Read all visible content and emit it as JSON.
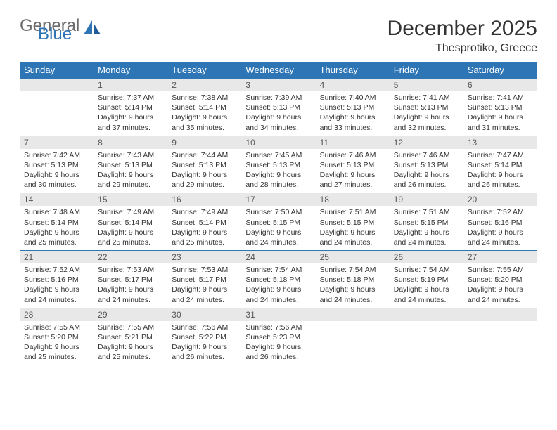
{
  "logo": {
    "word1": "General",
    "word2": "Blue"
  },
  "title": "December 2025",
  "location": "Thesprotiko, Greece",
  "colors": {
    "header_bg": "#2e75b6",
    "header_text": "#ffffff",
    "daybar_bg": "#e8e8e8",
    "rule": "#2e75b6",
    "body_text": "#333333",
    "logo_gray": "#6b6b6b",
    "logo_blue": "#2e75b6",
    "page_bg": "#ffffff"
  },
  "day_headers": [
    "Sunday",
    "Monday",
    "Tuesday",
    "Wednesday",
    "Thursday",
    "Friday",
    "Saturday"
  ],
  "weeks": [
    [
      {
        "n": "",
        "sr": "",
        "ss": "",
        "d1": "",
        "d2": ""
      },
      {
        "n": "1",
        "sr": "Sunrise: 7:37 AM",
        "ss": "Sunset: 5:14 PM",
        "d1": "Daylight: 9 hours",
        "d2": "and 37 minutes."
      },
      {
        "n": "2",
        "sr": "Sunrise: 7:38 AM",
        "ss": "Sunset: 5:14 PM",
        "d1": "Daylight: 9 hours",
        "d2": "and 35 minutes."
      },
      {
        "n": "3",
        "sr": "Sunrise: 7:39 AM",
        "ss": "Sunset: 5:13 PM",
        "d1": "Daylight: 9 hours",
        "d2": "and 34 minutes."
      },
      {
        "n": "4",
        "sr": "Sunrise: 7:40 AM",
        "ss": "Sunset: 5:13 PM",
        "d1": "Daylight: 9 hours",
        "d2": "and 33 minutes."
      },
      {
        "n": "5",
        "sr": "Sunrise: 7:41 AM",
        "ss": "Sunset: 5:13 PM",
        "d1": "Daylight: 9 hours",
        "d2": "and 32 minutes."
      },
      {
        "n": "6",
        "sr": "Sunrise: 7:41 AM",
        "ss": "Sunset: 5:13 PM",
        "d1": "Daylight: 9 hours",
        "d2": "and 31 minutes."
      }
    ],
    [
      {
        "n": "7",
        "sr": "Sunrise: 7:42 AM",
        "ss": "Sunset: 5:13 PM",
        "d1": "Daylight: 9 hours",
        "d2": "and 30 minutes."
      },
      {
        "n": "8",
        "sr": "Sunrise: 7:43 AM",
        "ss": "Sunset: 5:13 PM",
        "d1": "Daylight: 9 hours",
        "d2": "and 29 minutes."
      },
      {
        "n": "9",
        "sr": "Sunrise: 7:44 AM",
        "ss": "Sunset: 5:13 PM",
        "d1": "Daylight: 9 hours",
        "d2": "and 29 minutes."
      },
      {
        "n": "10",
        "sr": "Sunrise: 7:45 AM",
        "ss": "Sunset: 5:13 PM",
        "d1": "Daylight: 9 hours",
        "d2": "and 28 minutes."
      },
      {
        "n": "11",
        "sr": "Sunrise: 7:46 AM",
        "ss": "Sunset: 5:13 PM",
        "d1": "Daylight: 9 hours",
        "d2": "and 27 minutes."
      },
      {
        "n": "12",
        "sr": "Sunrise: 7:46 AM",
        "ss": "Sunset: 5:13 PM",
        "d1": "Daylight: 9 hours",
        "d2": "and 26 minutes."
      },
      {
        "n": "13",
        "sr": "Sunrise: 7:47 AM",
        "ss": "Sunset: 5:14 PM",
        "d1": "Daylight: 9 hours",
        "d2": "and 26 minutes."
      }
    ],
    [
      {
        "n": "14",
        "sr": "Sunrise: 7:48 AM",
        "ss": "Sunset: 5:14 PM",
        "d1": "Daylight: 9 hours",
        "d2": "and 25 minutes."
      },
      {
        "n": "15",
        "sr": "Sunrise: 7:49 AM",
        "ss": "Sunset: 5:14 PM",
        "d1": "Daylight: 9 hours",
        "d2": "and 25 minutes."
      },
      {
        "n": "16",
        "sr": "Sunrise: 7:49 AM",
        "ss": "Sunset: 5:14 PM",
        "d1": "Daylight: 9 hours",
        "d2": "and 25 minutes."
      },
      {
        "n": "17",
        "sr": "Sunrise: 7:50 AM",
        "ss": "Sunset: 5:15 PM",
        "d1": "Daylight: 9 hours",
        "d2": "and 24 minutes."
      },
      {
        "n": "18",
        "sr": "Sunrise: 7:51 AM",
        "ss": "Sunset: 5:15 PM",
        "d1": "Daylight: 9 hours",
        "d2": "and 24 minutes."
      },
      {
        "n": "19",
        "sr": "Sunrise: 7:51 AM",
        "ss": "Sunset: 5:15 PM",
        "d1": "Daylight: 9 hours",
        "d2": "and 24 minutes."
      },
      {
        "n": "20",
        "sr": "Sunrise: 7:52 AM",
        "ss": "Sunset: 5:16 PM",
        "d1": "Daylight: 9 hours",
        "d2": "and 24 minutes."
      }
    ],
    [
      {
        "n": "21",
        "sr": "Sunrise: 7:52 AM",
        "ss": "Sunset: 5:16 PM",
        "d1": "Daylight: 9 hours",
        "d2": "and 24 minutes."
      },
      {
        "n": "22",
        "sr": "Sunrise: 7:53 AM",
        "ss": "Sunset: 5:17 PM",
        "d1": "Daylight: 9 hours",
        "d2": "and 24 minutes."
      },
      {
        "n": "23",
        "sr": "Sunrise: 7:53 AM",
        "ss": "Sunset: 5:17 PM",
        "d1": "Daylight: 9 hours",
        "d2": "and 24 minutes."
      },
      {
        "n": "24",
        "sr": "Sunrise: 7:54 AM",
        "ss": "Sunset: 5:18 PM",
        "d1": "Daylight: 9 hours",
        "d2": "and 24 minutes."
      },
      {
        "n": "25",
        "sr": "Sunrise: 7:54 AM",
        "ss": "Sunset: 5:18 PM",
        "d1": "Daylight: 9 hours",
        "d2": "and 24 minutes."
      },
      {
        "n": "26",
        "sr": "Sunrise: 7:54 AM",
        "ss": "Sunset: 5:19 PM",
        "d1": "Daylight: 9 hours",
        "d2": "and 24 minutes."
      },
      {
        "n": "27",
        "sr": "Sunrise: 7:55 AM",
        "ss": "Sunset: 5:20 PM",
        "d1": "Daylight: 9 hours",
        "d2": "and 24 minutes."
      }
    ],
    [
      {
        "n": "28",
        "sr": "Sunrise: 7:55 AM",
        "ss": "Sunset: 5:20 PM",
        "d1": "Daylight: 9 hours",
        "d2": "and 25 minutes."
      },
      {
        "n": "29",
        "sr": "Sunrise: 7:55 AM",
        "ss": "Sunset: 5:21 PM",
        "d1": "Daylight: 9 hours",
        "d2": "and 25 minutes."
      },
      {
        "n": "30",
        "sr": "Sunrise: 7:56 AM",
        "ss": "Sunset: 5:22 PM",
        "d1": "Daylight: 9 hours",
        "d2": "and 26 minutes."
      },
      {
        "n": "31",
        "sr": "Sunrise: 7:56 AM",
        "ss": "Sunset: 5:23 PM",
        "d1": "Daylight: 9 hours",
        "d2": "and 26 minutes."
      },
      {
        "n": "",
        "sr": "",
        "ss": "",
        "d1": "",
        "d2": ""
      },
      {
        "n": "",
        "sr": "",
        "ss": "",
        "d1": "",
        "d2": ""
      },
      {
        "n": "",
        "sr": "",
        "ss": "",
        "d1": "",
        "d2": ""
      }
    ]
  ]
}
